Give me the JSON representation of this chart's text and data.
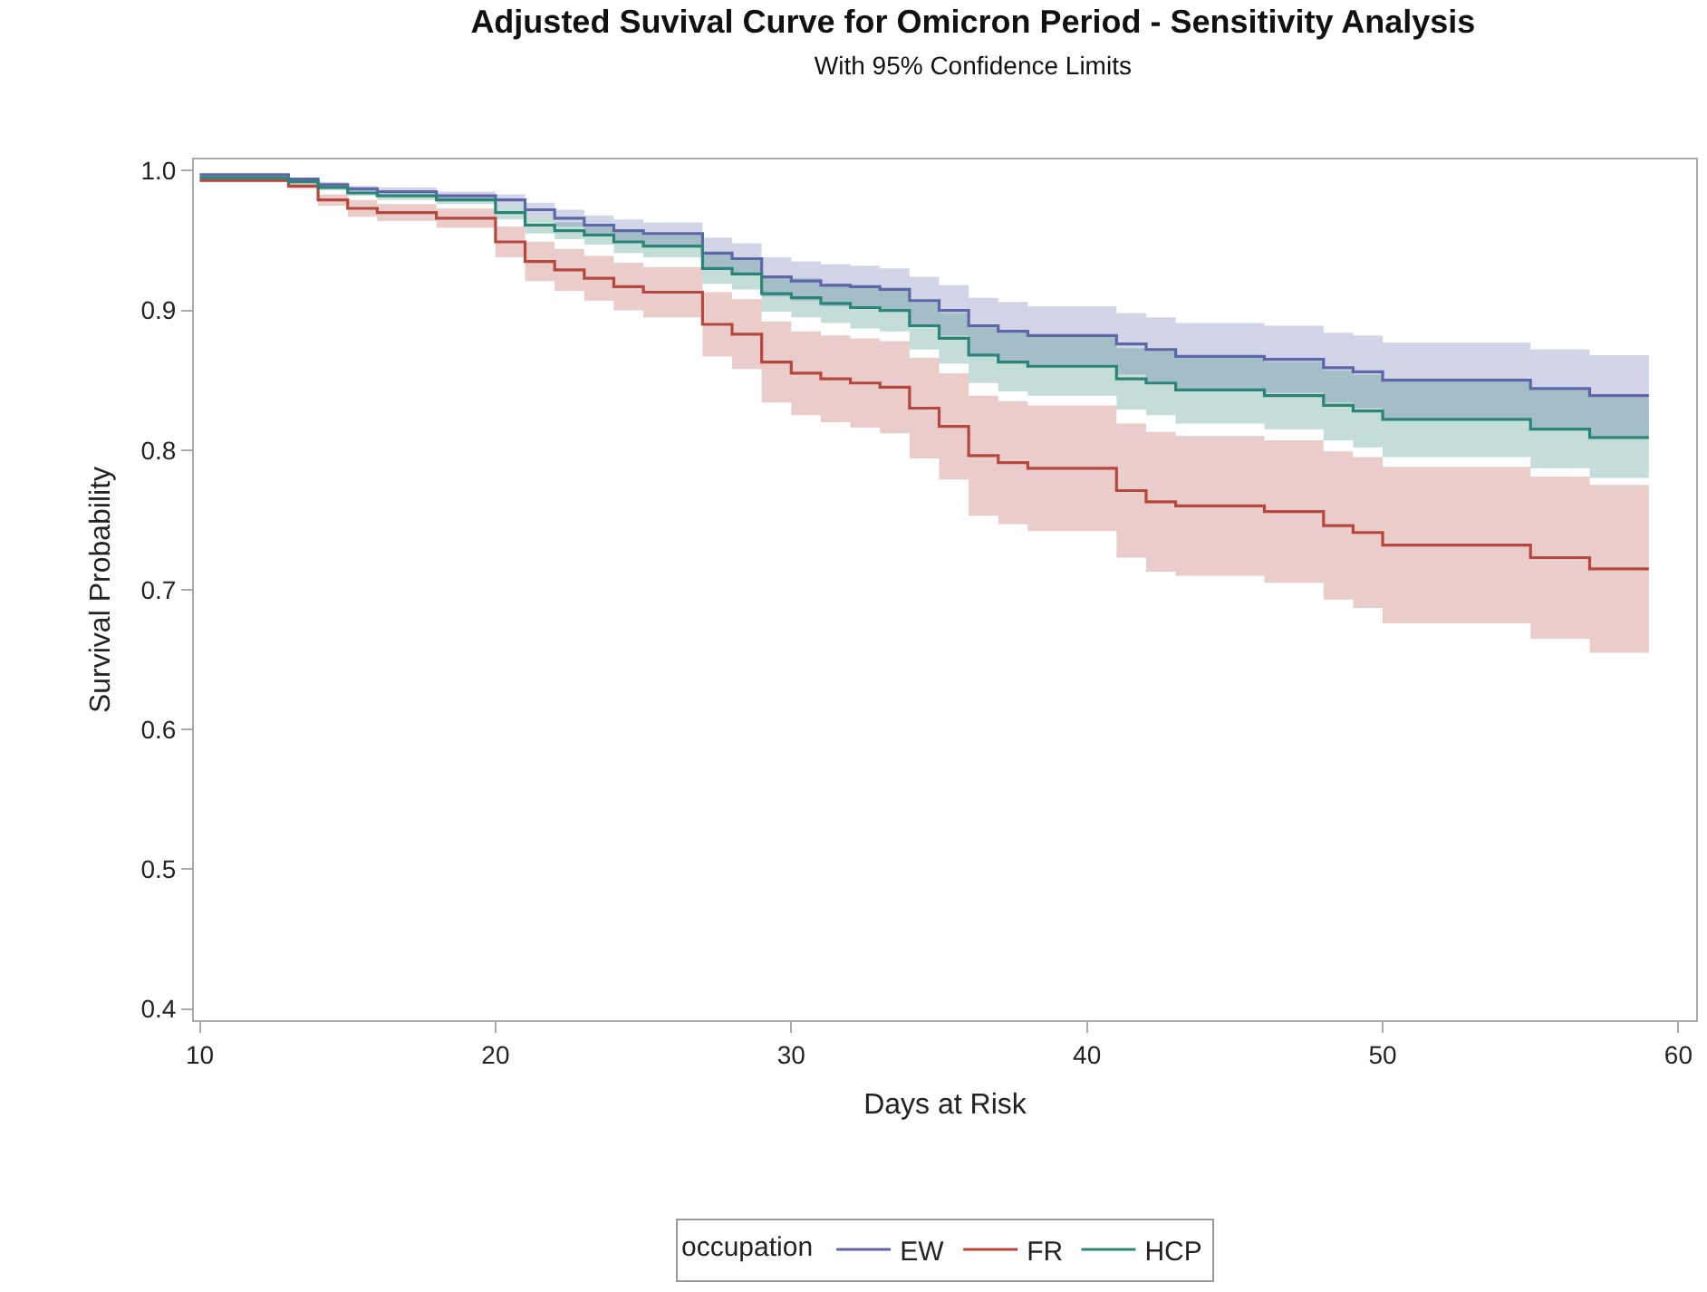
{
  "chart_data": {
    "type": "step",
    "title": "Adjusted Suvival Curve for Omicron Period - Sensitivity Analysis",
    "subtitle": "With 95% Confidence Limits",
    "xlabel": "Days at Risk",
    "ylabel": "Survival Probability",
    "legend_title": "occupation",
    "legend": "bottom",
    "grid": false,
    "marker": "none",
    "line_style": "solid",
    "x": [
      10,
      13,
      14,
      15,
      16,
      18,
      20,
      21,
      22,
      23,
      24,
      25,
      27,
      28,
      29,
      30,
      31,
      32,
      33,
      34,
      35,
      36,
      37,
      38,
      41,
      42,
      43,
      46,
      48,
      49,
      50,
      55,
      57,
      59
    ],
    "xlim": [
      9.8,
      60.6
    ],
    "xticks": [
      10,
      20,
      30,
      40,
      50,
      60
    ],
    "ylim": [
      0.392,
      1.008
    ],
    "yticks": [
      {
        "value": 0.4,
        "label": "0.4"
      },
      {
        "value": 0.5,
        "label": "0.5"
      },
      {
        "value": 0.6,
        "label": "0.6"
      },
      {
        "value": 0.7,
        "label": "0.7"
      },
      {
        "value": 0.8,
        "label": "0.8"
      },
      {
        "value": 0.9,
        "label": "0.9"
      },
      {
        "value": 1.0,
        "label": "1.0"
      }
    ],
    "series": [
      {
        "name": "EW",
        "color": "#5d67a8",
        "values": [
          0.997,
          0.994,
          0.99,
          0.987,
          0.985,
          0.982,
          0.979,
          0.972,
          0.966,
          0.961,
          0.957,
          0.955,
          0.941,
          0.937,
          0.924,
          0.921,
          0.918,
          0.917,
          0.915,
          0.907,
          0.9,
          0.889,
          0.885,
          0.882,
          0.876,
          0.872,
          0.867,
          0.865,
          0.859,
          0.856,
          0.85,
          0.844,
          0.839,
          0.839
        ],
        "upper": [
          0.998,
          0.995,
          0.992,
          0.989,
          0.988,
          0.985,
          0.983,
          0.977,
          0.972,
          0.968,
          0.965,
          0.963,
          0.952,
          0.948,
          0.938,
          0.935,
          0.933,
          0.932,
          0.93,
          0.924,
          0.918,
          0.909,
          0.906,
          0.903,
          0.898,
          0.895,
          0.891,
          0.889,
          0.884,
          0.882,
          0.877,
          0.872,
          0.868,
          0.868
        ],
        "lower": [
          0.996,
          0.993,
          0.988,
          0.985,
          0.982,
          0.979,
          0.975,
          0.967,
          0.96,
          0.954,
          0.949,
          0.947,
          0.93,
          0.926,
          0.91,
          0.907,
          0.903,
          0.902,
          0.9,
          0.89,
          0.882,
          0.869,
          0.864,
          0.861,
          0.854,
          0.849,
          0.843,
          0.841,
          0.834,
          0.83,
          0.823,
          0.816,
          0.81,
          0.81
        ]
      },
      {
        "name": "FR",
        "color": "#b5473f",
        "values": [
          0.993,
          0.989,
          0.979,
          0.973,
          0.97,
          0.966,
          0.949,
          0.935,
          0.929,
          0.923,
          0.917,
          0.913,
          0.89,
          0.883,
          0.863,
          0.855,
          0.851,
          0.848,
          0.845,
          0.83,
          0.817,
          0.796,
          0.791,
          0.787,
          0.771,
          0.763,
          0.76,
          0.756,
          0.746,
          0.741,
          0.732,
          0.723,
          0.715,
          0.715
        ],
        "upper": [
          0.994,
          0.991,
          0.983,
          0.979,
          0.976,
          0.973,
          0.96,
          0.949,
          0.944,
          0.939,
          0.934,
          0.931,
          0.913,
          0.908,
          0.892,
          0.885,
          0.882,
          0.88,
          0.878,
          0.866,
          0.855,
          0.839,
          0.835,
          0.832,
          0.819,
          0.813,
          0.81,
          0.807,
          0.799,
          0.795,
          0.788,
          0.781,
          0.775,
          0.775
        ],
        "lower": [
          0.992,
          0.987,
          0.975,
          0.967,
          0.964,
          0.959,
          0.938,
          0.921,
          0.914,
          0.907,
          0.9,
          0.895,
          0.867,
          0.858,
          0.834,
          0.825,
          0.82,
          0.816,
          0.812,
          0.794,
          0.779,
          0.753,
          0.747,
          0.742,
          0.723,
          0.713,
          0.71,
          0.705,
          0.693,
          0.687,
          0.676,
          0.665,
          0.655,
          0.655
        ]
      },
      {
        "name": "HCP",
        "color": "#2a8577",
        "values": [
          0.995,
          0.992,
          0.988,
          0.984,
          0.982,
          0.979,
          0.97,
          0.961,
          0.957,
          0.954,
          0.949,
          0.946,
          0.93,
          0.926,
          0.912,
          0.909,
          0.905,
          0.902,
          0.9,
          0.889,
          0.88,
          0.868,
          0.863,
          0.86,
          0.851,
          0.848,
          0.843,
          0.839,
          0.832,
          0.828,
          0.822,
          0.815,
          0.809,
          0.809
        ],
        "upper": [
          0.996,
          0.993,
          0.99,
          0.986,
          0.985,
          0.982,
          0.975,
          0.967,
          0.963,
          0.961,
          0.957,
          0.954,
          0.941,
          0.937,
          0.925,
          0.923,
          0.919,
          0.917,
          0.915,
          0.906,
          0.898,
          0.888,
          0.884,
          0.881,
          0.873,
          0.871,
          0.867,
          0.863,
          0.857,
          0.854,
          0.849,
          0.843,
          0.838,
          0.838
        ],
        "lower": [
          0.994,
          0.991,
          0.986,
          0.982,
          0.979,
          0.976,
          0.965,
          0.955,
          0.951,
          0.947,
          0.941,
          0.938,
          0.919,
          0.915,
          0.899,
          0.895,
          0.891,
          0.887,
          0.885,
          0.872,
          0.862,
          0.848,
          0.842,
          0.839,
          0.829,
          0.825,
          0.819,
          0.815,
          0.807,
          0.802,
          0.795,
          0.787,
          0.78,
          0.78
        ]
      }
    ]
  }
}
